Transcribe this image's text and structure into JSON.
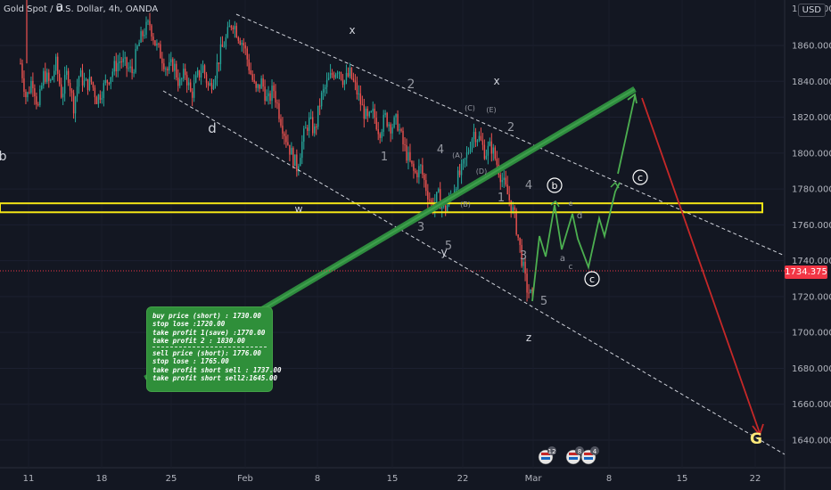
{
  "header": {
    "symbol": "Gold Spot / U.S. Dollar, 4h, OANDA",
    "currency": "USD"
  },
  "current_price": "1734.375",
  "note": {
    "lines_buy": [
      "buy price (short)  : 1730.00",
      "stop lose :1720.00",
      "take profit 1(save) :1770.00",
      "take profit 2 : 1830.00"
    ],
    "lines_sell": [
      "sell price (short): 1776.00",
      "stop lose : 1765.00",
      "take profit short sell : 1737.00",
      "take profit short sell2:1645.00"
    ]
  },
  "chart_data": {
    "type": "candlestick",
    "title": "Gold Spot / U.S. Dollar, 4h, OANDA",
    "ylim": [
      1630,
      1880
    ],
    "yticks": [
      1640,
      1660,
      1680,
      1700,
      1720,
      1740,
      1760,
      1780,
      1800,
      1820,
      1840,
      1860
    ],
    "ytick_labels": [
      "1640.000",
      "1660.000",
      "1680.000",
      "1700.000",
      "1720.000",
      "1740.000",
      "1760.000",
      "1780.000",
      "1800.000",
      "1820.000",
      "1840.000",
      "1860.000"
    ],
    "xtick_labels": [
      "11",
      "18",
      "25",
      "Feb",
      "8",
      "15",
      "22",
      "Mar",
      "8",
      "15",
      "22"
    ],
    "colors": {
      "up": "#26a69a",
      "down": "#ef5350",
      "background": "#131722",
      "grid": "#1e222d"
    },
    "price_path": [
      1850,
      1830,
      1842,
      1825,
      1845,
      1838,
      1850,
      1832,
      1846,
      1826,
      1844,
      1838,
      1840,
      1830,
      1836,
      1842,
      1848,
      1852,
      1848,
      1845,
      1860,
      1868,
      1872,
      1860,
      1854,
      1846,
      1850,
      1838,
      1845,
      1832,
      1842,
      1848,
      1836,
      1844,
      1856,
      1864,
      1874,
      1866,
      1860,
      1846,
      1834,
      1840,
      1828,
      1836,
      1822,
      1810,
      1800,
      1792,
      1808,
      1818,
      1812,
      1830,
      1838,
      1844,
      1848,
      1840,
      1844,
      1836,
      1826,
      1818,
      1822,
      1812,
      1820,
      1815,
      1818,
      1805,
      1796,
      1788,
      1792,
      1780,
      1770,
      1776,
      1768,
      1774,
      1784,
      1790,
      1800,
      1812,
      1808,
      1800,
      1804,
      1794,
      1784,
      1775,
      1764,
      1745,
      1725,
      1719
    ],
    "support_zone": [
      1767,
      1772
    ],
    "current_price": 1734.375,
    "wave_labels": [
      "a",
      "b",
      "d",
      "x",
      "x",
      "w",
      "y",
      "z",
      "1",
      "2",
      "3",
      "4",
      "5",
      "(A)",
      "(B)",
      "(C)",
      "(D)",
      "(E)",
      "2",
      "1",
      "3",
      "4",
      "5",
      "a",
      "c",
      "d",
      "b",
      "c",
      "c",
      "e",
      "G"
    ]
  }
}
